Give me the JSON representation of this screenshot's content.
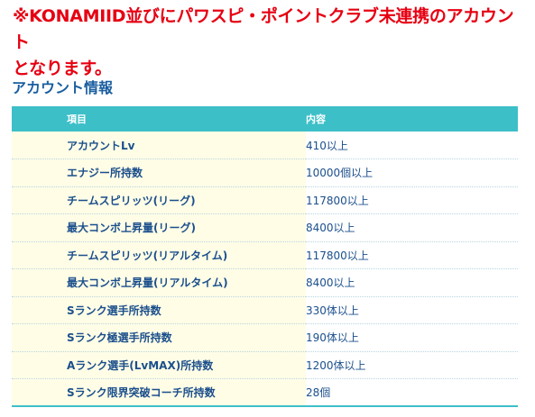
{
  "notice": {
    "line1": "※KONAMIID並びにパワスピ・ポイントクラブ未連携のアカウント",
    "line2": "となります。"
  },
  "section": {
    "title": "アカウント情報"
  },
  "table": {
    "headers": {
      "item": "項目",
      "content": "内容"
    },
    "rows": [
      {
        "item": "アカウントLv",
        "content": "410以上"
      },
      {
        "item": "エナジー所持数",
        "content": "10000個以上"
      },
      {
        "item": "チームスピリッツ(リーグ)",
        "content": "117800以上"
      },
      {
        "item": "最大コンボ上昇量(リーグ)",
        "content": "8400以上"
      },
      {
        "item": "チームスピリッツ(リアルタイム)",
        "content": "117800以上"
      },
      {
        "item": "最大コンボ上昇量(リアルタイム)",
        "content": "8400以上"
      },
      {
        "item": "Sランク選手所持数",
        "content": "330体以上"
      },
      {
        "item": "Sランク極選手所持数",
        "content": "190体以上"
      },
      {
        "item": "Aランク選手(LvMAX)所持数",
        "content": "1200体以上"
      },
      {
        "item": "Sランク限界突破コーチ所持数",
        "content": "28個"
      }
    ]
  },
  "colors": {
    "notice": "#e60012",
    "heading": "#1a5fa0",
    "header_bg": "#3dbfc8",
    "label_bg": "#fffde6",
    "text": "#1b4f8c"
  }
}
